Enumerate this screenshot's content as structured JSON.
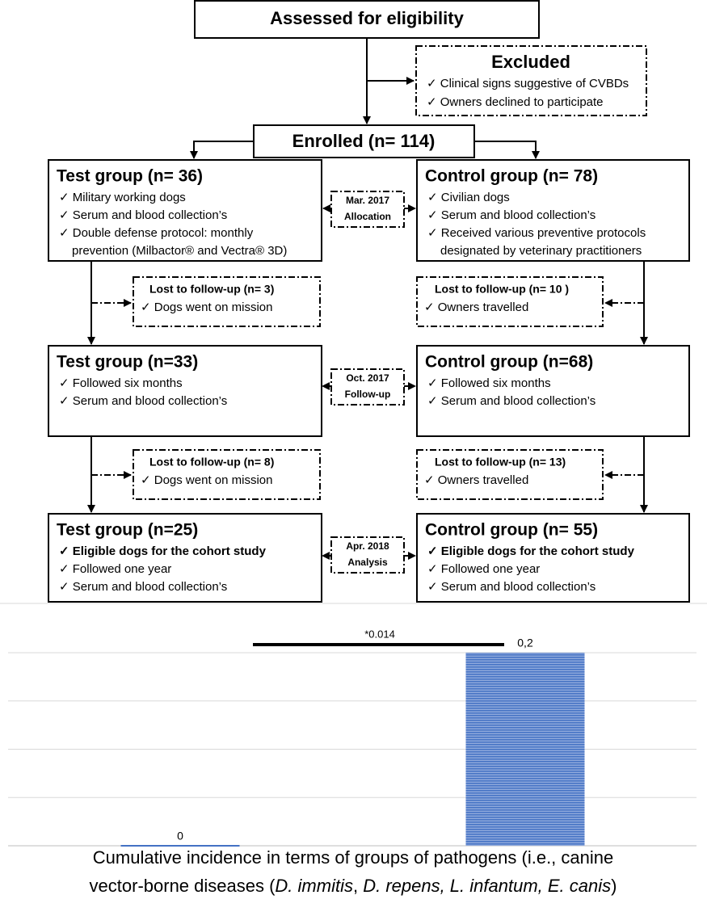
{
  "assessed": "Assessed for eligibility",
  "excluded": {
    "title": "Excluded",
    "items": [
      [
        "✓ Clinical signs suggestive of CVBDs"
      ],
      [
        "✓ Owners declined to participate"
      ]
    ]
  },
  "enrolled": "Enrolled (n= 114)",
  "stages": [
    {
      "test": {
        "title": "Test group (n= 36)",
        "items": [
          [
            "✓ Military working dogs"
          ],
          [
            "✓ Serum and blood collection’s"
          ],
          [
            "✓ Double defense protocol: monthly",
            "prevention (Milbactor® and Vectra® 3D)"
          ]
        ]
      },
      "control": {
        "title": "Control group (n= 78)",
        "items": [
          [
            "✓ Civilian dogs"
          ],
          [
            "✓ Serum and blood collection’s"
          ],
          [
            "✓ Received various preventive protocols",
            "designated by veterinary practitioners"
          ]
        ]
      },
      "timepoint": [
        "Mar. 2017",
        "Allocation"
      ]
    },
    {
      "test": {
        "title": "Test group (n=33)",
        "items": [
          [
            "✓ Followed six months"
          ],
          [
            "✓ Serum and blood collection’s"
          ]
        ]
      },
      "control": {
        "title": "Control group (n=68)",
        "items": [
          [
            "✓ Followed six months"
          ],
          [
            "✓ Serum and blood collection’s"
          ]
        ]
      },
      "timepoint": [
        "Oct. 2017",
        "Follow-up"
      ]
    },
    {
      "test": {
        "title": "Test group (n=25)",
        "items": [
          [
            "✓ Eligible dogs for the cohort study"
          ],
          [
            "✓ Followed one year"
          ],
          [
            "✓ Serum and blood collection’s"
          ]
        ]
      },
      "control": {
        "title": "Control group (n= 55)",
        "items": [
          [
            "✓ Eligible dogs for the cohort study"
          ],
          [
            "✓ Followed one year"
          ],
          [
            "✓ Serum and blood collection’s"
          ]
        ]
      },
      "timepoint": [
        "Apr. 2018",
        "Analysis"
      ],
      "bold_first": true
    }
  ],
  "lost": [
    {
      "test": {
        "title": "Lost to follow-up (n= 3)",
        "items": [
          "✓ Dogs went on mission"
        ]
      },
      "control": {
        "title": "Lost to follow-up (n= 10 )",
        "items": [
          "✓ Owners travelled"
        ]
      }
    },
    {
      "test": {
        "title": "Lost to follow-up (n= 8)",
        "items": [
          "✓ Dogs went on mission"
        ]
      },
      "control": {
        "title": "Lost to follow-up (n=  13)",
        "items": [
          "✓ Owners travelled"
        ]
      }
    }
  ],
  "chart_data": {
    "type": "bar",
    "categories": [
      null,
      null
    ],
    "values": [
      0,
      0.2
    ],
    "value_labels": [
      "0",
      "0,2"
    ],
    "color": "#4472c4",
    "ylim": [
      0,
      0.2
    ],
    "yticks": [
      0,
      0.05,
      0.1,
      0.15,
      0.2
    ],
    "grid": true,
    "annotation": "*0.014",
    "caption": [
      [
        {
          "text": "Cumulative incidence in terms of groups of pathogens (i.e., canine",
          "italic": false
        }
      ],
      [
        {
          "text": "vector-borne diseases (",
          "italic": false
        },
        {
          "text": "D. immitis",
          "italic": true
        },
        {
          "text": ", ",
          "italic": false
        },
        {
          "text": "D. repens, L. infantum, E. canis",
          "italic": true
        },
        {
          "text": ")",
          "italic": false
        }
      ]
    ]
  }
}
